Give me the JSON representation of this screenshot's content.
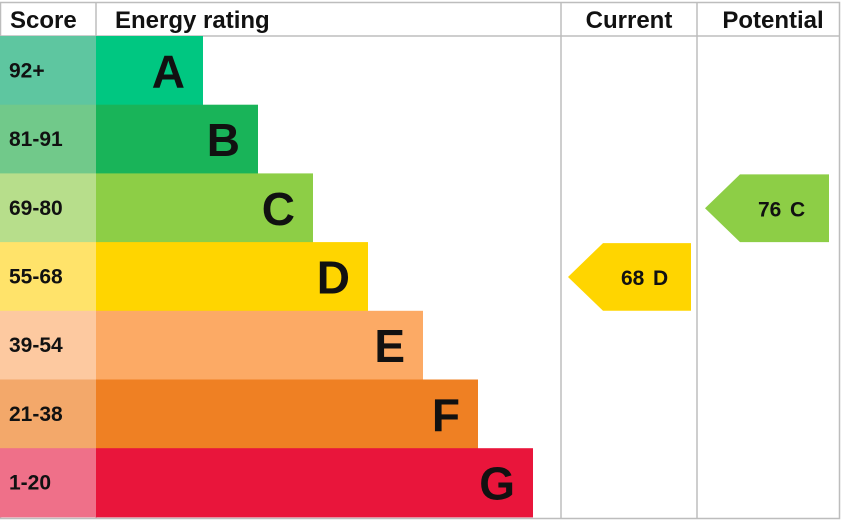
{
  "chart_data": {
    "type": "table",
    "headers": {
      "score": "Score",
      "rating": "Energy rating",
      "current": "Current",
      "potential": "Potential"
    },
    "bands": [
      {
        "score": "92+",
        "letter": "A",
        "color": "#00c781",
        "score_color": "#5ec6a0"
      },
      {
        "score": "81-91",
        "letter": "B",
        "color": "#19b459",
        "score_color": "#71c98a"
      },
      {
        "score": "69-80",
        "letter": "C",
        "color": "#8dce46",
        "score_color": "#b7de8b"
      },
      {
        "score": "55-68",
        "letter": "D",
        "color": "#ffd500",
        "score_color": "#ffe36a"
      },
      {
        "score": "39-54",
        "letter": "E",
        "color": "#fcaa65",
        "score_color": "#fdc9a0"
      },
      {
        "score": "21-38",
        "letter": "F",
        "color": "#ef8023",
        "score_color": "#f3a86a"
      },
      {
        "score": "1-20",
        "letter": "G",
        "color": "#e9153b",
        "score_color": "#ef7089"
      }
    ],
    "current": {
      "value": 68,
      "letter": "D",
      "color": "#ffd500"
    },
    "potential": {
      "value": 76,
      "letter": "C",
      "color": "#8dce46"
    }
  }
}
